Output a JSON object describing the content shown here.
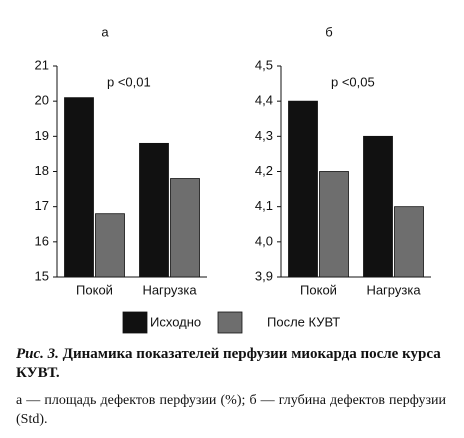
{
  "chart_data": [
    {
      "type": "bar",
      "title": "а",
      "annotation": "p <0,01",
      "categories": [
        "Покой",
        "Нагрузка"
      ],
      "series": [
        {
          "name": "Исходно",
          "color": "#111111",
          "values": [
            20.1,
            18.8
          ]
        },
        {
          "name": "После КУВТ",
          "color": "#6e6e6e",
          "values": [
            16.8,
            17.8
          ]
        }
      ],
      "ylim": [
        15,
        21
      ],
      "yticks": [
        15,
        16,
        17,
        18,
        19,
        20,
        21
      ]
    },
    {
      "type": "bar",
      "title": "б",
      "annotation": "p <0,05",
      "categories": [
        "Покой",
        "Нагрузка"
      ],
      "series": [
        {
          "name": "Исходно",
          "color": "#111111",
          "values": [
            4.4,
            4.3
          ]
        },
        {
          "name": "После КУВТ",
          "color": "#6e6e6e",
          "values": [
            4.2,
            4.1
          ]
        }
      ],
      "ylim": [
        3.9,
        4.5
      ],
      "yticks": [
        {
          "value": 3.9,
          "label": "3,9"
        },
        {
          "value": 4.0,
          "label": "4,0"
        },
        {
          "value": 4.1,
          "label": "4,1"
        },
        {
          "value": 4.2,
          "label": "4,2"
        },
        {
          "value": 4.3,
          "label": "4,3"
        },
        {
          "value": 4.4,
          "label": "4,4"
        },
        {
          "value": 4.5,
          "label": "4,5"
        }
      ]
    }
  ],
  "caption": {
    "label": "Рис. 3.",
    "title": "Динамика показателей перфузии миокарда после курса КУВТ.",
    "note": "а — площадь дефектов перфузии (%); б — глубина дефектов перфузии (Std)."
  }
}
